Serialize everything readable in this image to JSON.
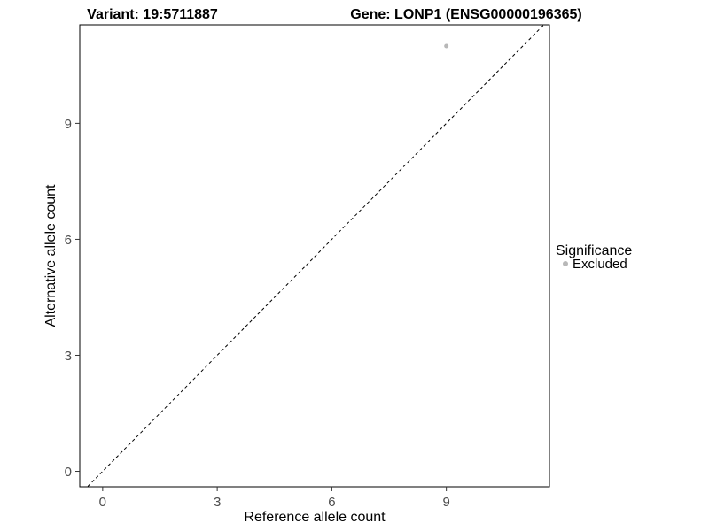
{
  "chart_data": {
    "type": "scatter",
    "title_left": "Variant: 19:5711887",
    "title_right": "Gene: LONP1 (ENSG00000196365)",
    "xlabel": "Reference allele count",
    "ylabel": "Alternative allele count",
    "xlim": [
      -0.6,
      11.7
    ],
    "ylim": [
      -0.4,
      11.55
    ],
    "xticks": [
      0,
      3,
      6,
      9
    ],
    "yticks": [
      0,
      3,
      6,
      9
    ],
    "grid": "off",
    "panel_border_color": "#000000",
    "point_color": "#b8b8b8",
    "point_radius": 2.5,
    "points": [
      {
        "x": 9,
        "y": 11,
        "series": "Excluded"
      }
    ],
    "reference_line": {
      "slope": 1,
      "intercept": 0,
      "style": "dashed",
      "color": "#000000"
    },
    "legend": {
      "position": "right",
      "title": "Significance",
      "entries": [
        {
          "label": "Excluded",
          "color": "#b8b8b8"
        }
      ]
    }
  }
}
